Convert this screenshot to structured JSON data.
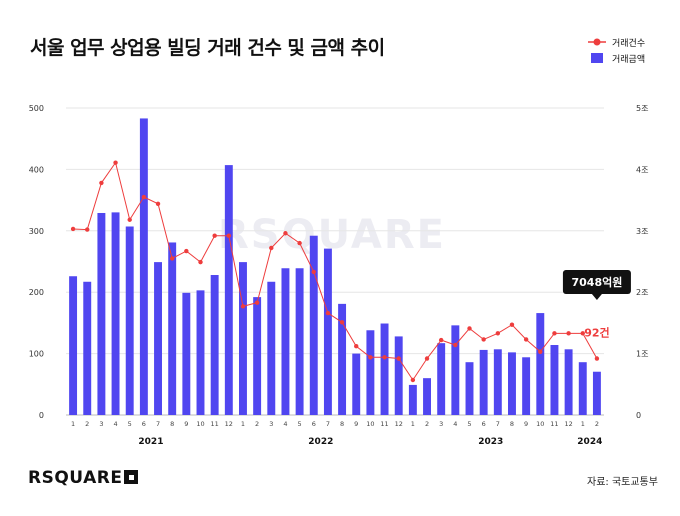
{
  "title": "서울 업무 상업용 빌딩 거래 건수 및 금액 추이",
  "source": "자료: 국토교통부",
  "logo_text": "RSQUARE",
  "watermark": "RSQUARE",
  "colors": {
    "bar": "#5046f0",
    "line": "#ee3d3d",
    "callout_bg": "#111111",
    "callout_value": "#ee3d3d"
  },
  "chart_data": {
    "type": "bar",
    "categories": [
      "1",
      "2",
      "3",
      "4",
      "5",
      "6",
      "7",
      "8",
      "9",
      "10",
      "11",
      "12",
      "1",
      "2",
      "3",
      "4",
      "5",
      "6",
      "7",
      "8",
      "9",
      "10",
      "11",
      "12",
      "1",
      "2",
      "3",
      "4",
      "5",
      "6",
      "7",
      "8",
      "9",
      "10",
      "11",
      "12",
      "1",
      "2"
    ],
    "years": [
      {
        "label": "2021",
        "center_index": 5.5
      },
      {
        "label": "2022",
        "center_index": 17.5
      },
      {
        "label": "2023",
        "center_index": 29.5
      },
      {
        "label": "2024",
        "center_index": 36.5
      }
    ],
    "series": [
      {
        "name": "거래건수",
        "type": "line",
        "axis": "left",
        "values": [
          303,
          302,
          378,
          411,
          318,
          355,
          344,
          255,
          267,
          249,
          292,
          292,
          177,
          183,
          272,
          296,
          280,
          233,
          166,
          151,
          112,
          94,
          94,
          92,
          57,
          92,
          122,
          114,
          141,
          123,
          133,
          147,
          123,
          103,
          133,
          133,
          133,
          92
        ]
      },
      {
        "name": "거래금액",
        "type": "bar",
        "axis": "right",
        "values": [
          2.26,
          2.17,
          3.29,
          3.3,
          3.07,
          4.83,
          2.49,
          2.81,
          1.99,
          2.03,
          2.28,
          4.07,
          2.49,
          1.92,
          2.17,
          2.39,
          2.39,
          2.92,
          2.71,
          1.81,
          1.0,
          1.38,
          1.49,
          1.28,
          0.49,
          0.6,
          1.17,
          1.46,
          0.86,
          1.06,
          1.07,
          1.02,
          0.94,
          1.66,
          1.14,
          1.07,
          0.86,
          0.7048
        ]
      }
    ],
    "left_axis": {
      "ticks": [
        "0",
        "100",
        "200",
        "300",
        "400",
        "500"
      ],
      "range": [
        0,
        500
      ]
    },
    "right_axis": {
      "ticks": [
        "0",
        "1조",
        "2조",
        "3조",
        "4조",
        "5조"
      ],
      "range": [
        0,
        5
      ]
    },
    "legend": {
      "placement": "top-right",
      "line_label": "거래건수",
      "bar_label": "거래금액"
    },
    "grid": true,
    "annotations": {
      "amount_label": "7048억원",
      "count_label": "92건"
    }
  }
}
